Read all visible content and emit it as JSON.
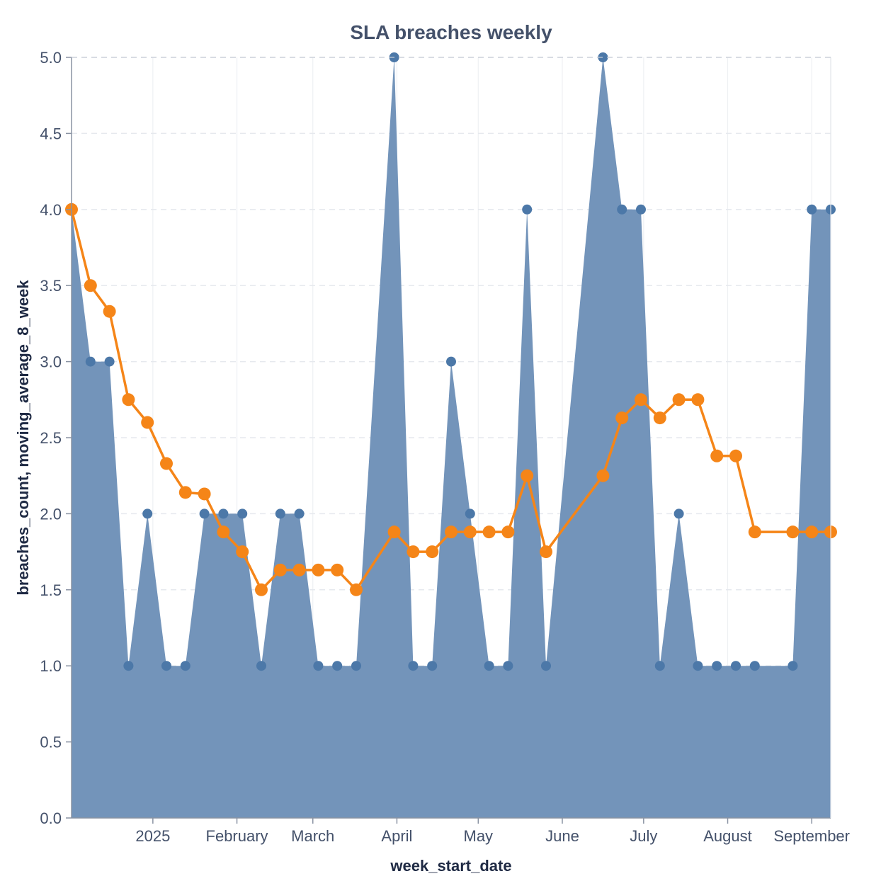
{
  "chart_data": {
    "type": "area",
    "title": "SLA breaches weekly",
    "xlabel": "week_start_date",
    "ylabel": "breaches_count, moving_average_8_week",
    "ylim": [
      0,
      5
    ],
    "y_ticks": [
      "0.0",
      "0.5",
      "1.0",
      "1.5",
      "2.0",
      "2.5",
      "3.0",
      "3.5",
      "4.0",
      "4.5",
      "5.0"
    ],
    "x_range": [
      "2024-12-02",
      "2025-09-08"
    ],
    "x_ticks": [
      {
        "date": "2025-01-01",
        "label": "2025"
      },
      {
        "date": "2025-02-01",
        "label": "February"
      },
      {
        "date": "2025-03-01",
        "label": "March"
      },
      {
        "date": "2025-04-01",
        "label": "April"
      },
      {
        "date": "2025-05-01",
        "label": "May"
      },
      {
        "date": "2025-06-01",
        "label": "June"
      },
      {
        "date": "2025-07-01",
        "label": "July"
      },
      {
        "date": "2025-08-01",
        "label": "August"
      },
      {
        "date": "2025-09-01",
        "label": "September"
      }
    ],
    "grid": true,
    "x": [
      "2024-12-02",
      "2024-12-09",
      "2024-12-16",
      "2024-12-23",
      "2024-12-30",
      "2025-01-06",
      "2025-01-13",
      "2025-01-20",
      "2025-01-27",
      "2025-02-03",
      "2025-02-10",
      "2025-02-17",
      "2025-02-24",
      "2025-03-03",
      "2025-03-10",
      "2025-03-17",
      "2025-03-31",
      "2025-04-07",
      "2025-04-14",
      "2025-04-21",
      "2025-04-28",
      "2025-05-05",
      "2025-05-12",
      "2025-05-19",
      "2025-05-26",
      "2025-06-16",
      "2025-06-23",
      "2025-06-30",
      "2025-07-07",
      "2025-07-14",
      "2025-07-21",
      "2025-07-28",
      "2025-08-04",
      "2025-08-11",
      "2025-08-25",
      "2025-09-01",
      "2025-09-08"
    ],
    "series": [
      {
        "name": "breaches_count",
        "mark": "area",
        "color": "#7394ba",
        "point_color": "#4c78a8",
        "values": [
          4,
          3,
          3,
          1,
          2,
          1,
          1,
          2,
          2,
          2,
          1,
          2,
          2,
          1,
          1,
          1,
          5,
          1,
          1,
          3,
          2,
          1,
          1,
          4,
          1,
          5,
          4,
          4,
          1,
          2,
          1,
          1,
          1,
          1,
          1,
          4,
          4
        ]
      },
      {
        "name": "moving_average_8_week",
        "mark": "line",
        "color": "#f58518",
        "values": [
          4.0,
          3.5,
          3.33,
          2.75,
          2.6,
          2.33,
          2.14,
          2.13,
          1.88,
          1.75,
          1.5,
          1.63,
          1.63,
          1.63,
          1.63,
          1.5,
          1.88,
          1.75,
          1.75,
          1.88,
          1.88,
          1.88,
          1.88,
          2.25,
          1.75,
          2.25,
          2.63,
          2.75,
          2.63,
          2.75,
          2.75,
          2.38,
          2.38,
          1.88,
          1.88,
          1.88,
          1.88
        ]
      }
    ]
  }
}
